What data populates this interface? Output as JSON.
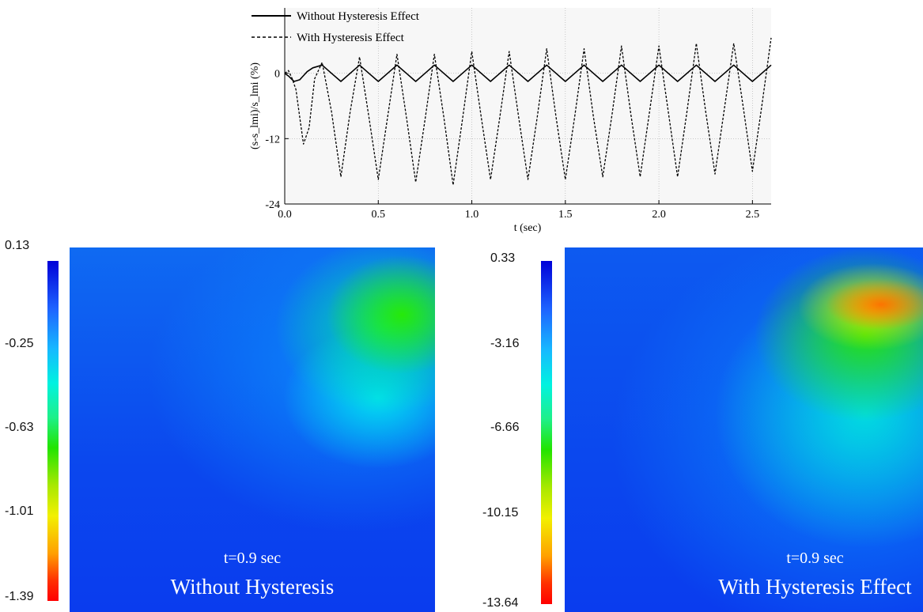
{
  "chart_data": [
    {
      "type": "line",
      "xlabel": "t (sec)",
      "ylabel": "(s-s_lmi)/s_lmi (%)",
      "xlim": [
        0.0,
        2.6
      ],
      "ylim": [
        -24,
        12
      ],
      "xticks": [
        "0.0",
        "0.5",
        "1.0",
        "1.5",
        "2.0",
        "2.5"
      ],
      "yticks": [
        "0",
        "-12",
        "-24"
      ],
      "grid": "dotted",
      "legend_position": "top-left",
      "series": [
        {
          "name": "Without Hysteresis Effect",
          "style": "solid",
          "color": "#000000",
          "x": [
            0.0,
            0.02,
            0.05,
            0.08,
            0.12,
            0.15,
            0.2,
            0.25,
            0.3,
            0.35,
            0.4,
            0.45,
            0.5,
            0.55,
            0.6,
            0.65,
            0.7,
            0.75,
            0.8,
            0.85,
            0.9,
            0.95,
            1.0,
            1.05,
            1.1,
            1.15,
            1.2,
            1.25,
            1.3,
            1.35,
            1.4,
            1.45,
            1.5,
            1.55,
            1.6,
            1.65,
            1.7,
            1.75,
            1.8,
            1.85,
            1.9,
            1.95,
            2.0,
            2.05,
            2.1,
            2.15,
            2.2,
            2.25,
            2.3,
            2.35,
            2.4,
            2.45,
            2.5,
            2.55,
            2.6
          ],
          "y": [
            0.0,
            -0.5,
            -1.5,
            -1.2,
            0.3,
            1.0,
            1.5,
            0.0,
            -1.5,
            0.0,
            1.5,
            0.0,
            -1.5,
            0.0,
            1.5,
            0.0,
            -1.5,
            0.0,
            1.5,
            0.0,
            -1.5,
            0.0,
            1.5,
            0.0,
            -1.5,
            0.0,
            1.5,
            0.0,
            -1.5,
            0.0,
            1.5,
            0.0,
            -1.5,
            0.0,
            1.5,
            0.0,
            -1.5,
            0.0,
            1.5,
            0.0,
            -1.5,
            0.0,
            1.5,
            0.0,
            -1.5,
            0.0,
            1.5,
            0.0,
            -1.5,
            0.0,
            1.5,
            0.0,
            -1.5,
            0.0,
            1.5
          ]
        },
        {
          "name": "With Hysteresis Effect",
          "style": "dashed",
          "color": "#000000",
          "x": [
            0.0,
            0.02,
            0.04,
            0.06,
            0.08,
            0.1,
            0.13,
            0.16,
            0.2,
            0.25,
            0.3,
            0.35,
            0.4,
            0.45,
            0.5,
            0.55,
            0.6,
            0.65,
            0.7,
            0.75,
            0.8,
            0.85,
            0.9,
            0.95,
            1.0,
            1.05,
            1.1,
            1.15,
            1.2,
            1.25,
            1.3,
            1.35,
            1.4,
            1.45,
            1.5,
            1.55,
            1.6,
            1.65,
            1.7,
            1.75,
            1.8,
            1.85,
            1.9,
            1.95,
            2.0,
            2.05,
            2.1,
            2.15,
            2.2,
            2.25,
            2.3,
            2.35,
            2.4,
            2.45,
            2.5,
            2.55,
            2.6
          ],
          "y": [
            0.0,
            0.5,
            -1.0,
            -3.0,
            -8.0,
            -13.0,
            -10.0,
            -1.0,
            2.0,
            -7.0,
            -19.0,
            -7.0,
            3.0,
            -8.0,
            -19.5,
            -8.0,
            3.5,
            -8.0,
            -20.0,
            -8.5,
            3.5,
            -8.0,
            -20.5,
            -8.5,
            4.0,
            -8.0,
            -19.5,
            -8.0,
            4.0,
            -8.0,
            -19.5,
            -8.0,
            4.5,
            -8.0,
            -19.5,
            -8.0,
            4.5,
            -8.0,
            -19.0,
            -7.5,
            5.0,
            -7.5,
            -19.0,
            -7.0,
            5.0,
            -7.0,
            -19.0,
            -7.0,
            5.5,
            -7.0,
            -18.5,
            -6.5,
            5.5,
            -6.0,
            -18.0,
            -6.0,
            6.5
          ]
        }
      ]
    },
    {
      "type": "heatmap",
      "colorbar_ticks": [
        "0.13",
        "-0.25",
        "-0.63",
        "-1.01",
        "-1.39"
      ],
      "colorbar_range": [
        -1.39,
        0.13
      ],
      "time_label": "t=0.9 sec",
      "caption": "Without Hysteresis"
    },
    {
      "type": "heatmap",
      "colorbar_ticks": [
        "0.33",
        "-3.16",
        "-6.66",
        "-10.15",
        "-13.64"
      ],
      "colorbar_range": [
        -13.64,
        0.33
      ],
      "time_label": "t=0.9 sec",
      "caption": "With Hysteresis Effect"
    }
  ]
}
